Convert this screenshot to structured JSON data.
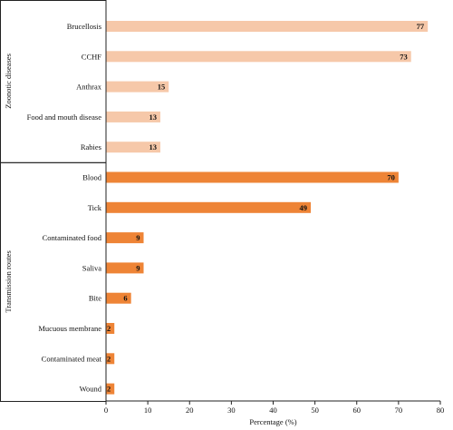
{
  "chart_data": {
    "type": "bar",
    "orientation": "horizontal",
    "xlabel": "Percentage (%)",
    "xlim": [
      0,
      80
    ],
    "x_ticks": [
      0,
      10,
      20,
      30,
      40,
      50,
      60,
      70,
      80
    ],
    "grid": false,
    "groups": [
      {
        "name": "Zoonotic diseases",
        "color": "#f6c8a9",
        "categories": [
          "Brucellosis",
          "CCHF",
          "Anthrax",
          "Food and mouth disease",
          "Rabies"
        ],
        "values": [
          77,
          73,
          15,
          13,
          13
        ]
      },
      {
        "name": "Transmission routes",
        "color": "#ee8436",
        "categories": [
          "Blood",
          "Tick",
          "Contaminated food",
          "Saliva",
          "Bite",
          "Mucuous membrane",
          "Contaminated meat",
          "Wound"
        ],
        "values": [
          70,
          49,
          9,
          9,
          6,
          2,
          2,
          2
        ]
      }
    ]
  }
}
